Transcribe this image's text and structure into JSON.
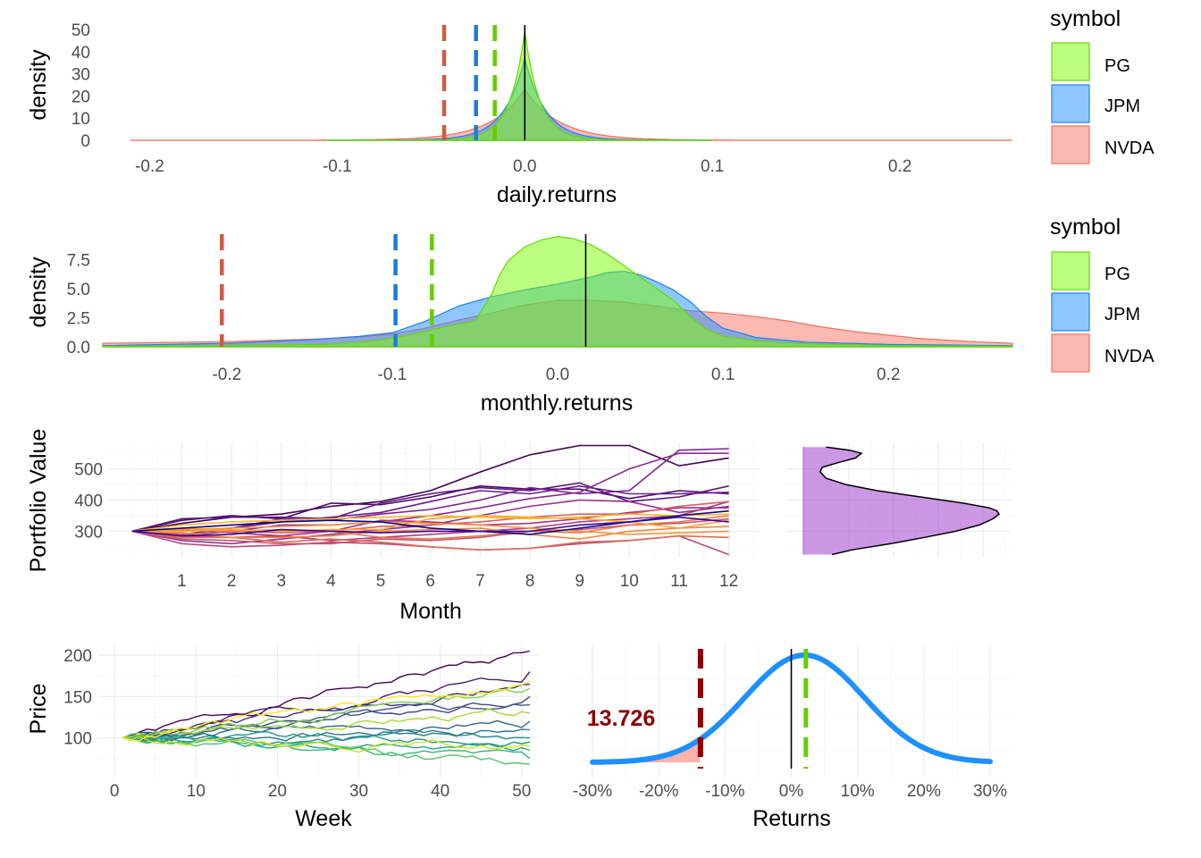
{
  "chart_data": [
    {
      "id": "daily",
      "type": "area",
      "title": "",
      "xlabel": "daily.returns",
      "ylabel": "density",
      "xlim": [
        -0.225,
        0.26
      ],
      "ylim": [
        0,
        52
      ],
      "x_ticks": [
        -0.2,
        -0.1,
        0.0,
        0.1,
        0.2
      ],
      "x_tick_labels": [
        "-0.2",
        "-0.1",
        "0.0",
        "0.1",
        "0.2"
      ],
      "y_ticks": [
        0,
        10,
        20,
        30,
        40,
        50
      ],
      "y_tick_labels": [
        "0",
        "10",
        "20",
        "30",
        "40",
        "50"
      ],
      "grid": false,
      "legend": {
        "title": "symbol",
        "position": "right",
        "labels": [
          "PG",
          "JPM",
          "NVDA"
        ]
      },
      "series": [
        {
          "name": "PG",
          "fill": "#7cfc00",
          "fill_opacity": 0.5,
          "stroke": "#66d900",
          "kind": "laplace",
          "mu": 0.0,
          "peak": 49,
          "scale": 0.008,
          "range": [
            -0.105,
            0.1
          ]
        },
        {
          "name": "JPM",
          "fill": "#1e90ff",
          "fill_opacity": 0.5,
          "stroke": "#1e82f0",
          "kind": "laplace",
          "mu": 0.0,
          "peak": 37,
          "scale": 0.011,
          "range": [
            -0.105,
            0.1
          ]
        },
        {
          "name": "NVDA",
          "fill": "#fa8072",
          "fill_opacity": 0.55,
          "stroke": "#f0705e",
          "kind": "laplace",
          "mu": 0.0,
          "peak": 23,
          "scale": 0.018,
          "range": [
            -0.21,
            0.26
          ]
        }
      ],
      "vlines": [
        {
          "x": -0.043,
          "color": "#cd5b45",
          "dashed": true
        },
        {
          "x": -0.026,
          "color": "#1c7cd6",
          "dashed": true
        },
        {
          "x": -0.016,
          "color": "#66cd00",
          "dashed": true
        },
        {
          "x": 0.0,
          "color": "#000000",
          "dashed": false
        }
      ]
    },
    {
      "id": "monthly",
      "type": "area",
      "title": "",
      "xlabel": "monthly.returns",
      "ylabel": "density",
      "xlim": [
        -0.275,
        0.275
      ],
      "ylim": [
        0,
        9.7
      ],
      "x_ticks": [
        -0.2,
        -0.1,
        0.0,
        0.1,
        0.2
      ],
      "x_tick_labels": [
        "-0.2",
        "-0.1",
        "0.0",
        "0.1",
        "0.2"
      ],
      "y_ticks": [
        0,
        2.5,
        5.0,
        7.5
      ],
      "y_tick_labels": [
        "0.0",
        "2.5",
        "5.0",
        "7.5"
      ],
      "grid": false,
      "legend": {
        "title": "symbol",
        "position": "right",
        "labels": [
          "PG",
          "JPM",
          "NVDA"
        ]
      },
      "series": [
        {
          "name": "PG",
          "fill": "#7cfc00",
          "fill_opacity": 0.5,
          "stroke": "#66d900",
          "x": [
            -0.275,
            -0.2,
            -0.14,
            -0.11,
            -0.09,
            -0.075,
            -0.065,
            -0.05,
            -0.04,
            -0.035,
            -0.03,
            -0.02,
            -0.01,
            0.0,
            0.01,
            0.02,
            0.03,
            0.04,
            0.05,
            0.06,
            0.07,
            0.08,
            0.09,
            0.1,
            0.12,
            0.15,
            0.2,
            0.275
          ],
          "y": [
            0.05,
            0.1,
            0.2,
            0.5,
            1.0,
            1.5,
            1.8,
            2.2,
            4.5,
            6.2,
            7.4,
            8.6,
            9.2,
            9.5,
            9.3,
            8.8,
            8.0,
            7.0,
            6.0,
            5.0,
            4.0,
            2.6,
            1.5,
            0.9,
            0.5,
            0.25,
            0.1,
            0.05
          ]
        },
        {
          "name": "JPM",
          "fill": "#1e90ff",
          "fill_opacity": 0.5,
          "stroke": "#1e82f0",
          "x": [
            -0.275,
            -0.2,
            -0.15,
            -0.12,
            -0.1,
            -0.08,
            -0.06,
            -0.04,
            -0.02,
            0.0,
            0.02,
            0.03,
            0.04,
            0.05,
            0.06,
            0.07,
            0.08,
            0.09,
            0.1,
            0.12,
            0.15,
            0.2,
            0.275
          ],
          "y": [
            0.1,
            0.3,
            0.6,
            0.9,
            1.2,
            2.2,
            3.5,
            4.3,
            4.9,
            5.4,
            6.0,
            6.4,
            6.5,
            6.2,
            5.6,
            4.9,
            3.9,
            2.6,
            1.6,
            0.8,
            0.4,
            0.2,
            0.1
          ]
        },
        {
          "name": "NVDA",
          "fill": "#fa8072",
          "fill_opacity": 0.55,
          "stroke": "#f0705e",
          "x": [
            -0.275,
            -0.25,
            -0.2,
            -0.15,
            -0.12,
            -0.1,
            -0.08,
            -0.06,
            -0.04,
            -0.02,
            0.0,
            0.02,
            0.04,
            0.06,
            0.08,
            0.1,
            0.12,
            0.14,
            0.16,
            0.18,
            0.2,
            0.22,
            0.25,
            0.275
          ],
          "y": [
            0.3,
            0.35,
            0.45,
            0.65,
            0.85,
            1.1,
            1.6,
            2.3,
            2.9,
            3.6,
            4.0,
            4.0,
            3.85,
            3.5,
            3.1,
            2.9,
            2.6,
            2.2,
            1.7,
            1.3,
            1.0,
            0.7,
            0.45,
            0.3
          ]
        }
      ],
      "vlines": [
        {
          "x": -0.203,
          "color": "#cd5b45",
          "dashed": true
        },
        {
          "x": -0.098,
          "color": "#1c7cd6",
          "dashed": true
        },
        {
          "x": -0.076,
          "color": "#66cd00",
          "dashed": true
        },
        {
          "x": 0.017,
          "color": "#000000",
          "dashed": false
        }
      ]
    },
    {
      "id": "portfolio",
      "type": "line",
      "title": "",
      "xlabel": "Month",
      "ylabel": "Portfolio Value",
      "xlim": [
        -0.5,
        12.6
      ],
      "ylim": [
        215,
        585
      ],
      "x_ticks": [
        1,
        2,
        3,
        4,
        5,
        6,
        7,
        8,
        9,
        10,
        11,
        12
      ],
      "x_tick_labels": [
        "1",
        "2",
        "3",
        "4",
        "5",
        "6",
        "7",
        "8",
        "9",
        "10",
        "11",
        "12"
      ],
      "y_ticks": [
        300,
        400,
        500
      ],
      "y_tick_labels": [
        "300",
        "400",
        "500"
      ],
      "grid": true,
      "x": [
        0,
        1,
        2,
        3,
        4,
        5,
        6,
        7,
        8,
        9,
        10,
        11,
        12
      ],
      "series": [
        {
          "color": "#440154",
          "values": [
            300,
            325,
            345,
            355,
            380,
            395,
            430,
            490,
            545,
            575,
            575,
            510,
            535
          ]
        },
        {
          "color": "#4b0c6b",
          "values": [
            300,
            335,
            350,
            340,
            390,
            385,
            410,
            445,
            435,
            435,
            405,
            430,
            420
          ]
        },
        {
          "color": "#5a167e",
          "values": [
            300,
            340,
            345,
            345,
            340,
            390,
            420,
            440,
            430,
            455,
            395,
            410,
            445
          ]
        },
        {
          "color": "#6a1e8a",
          "values": [
            300,
            300,
            310,
            330,
            345,
            360,
            395,
            430,
            420,
            445,
            420,
            420,
            425
          ]
        },
        {
          "color": "#7a2590",
          "values": [
            300,
            290,
            310,
            340,
            335,
            355,
            370,
            400,
            440,
            420,
            430,
            560,
            565
          ]
        },
        {
          "color": "#892d92",
          "values": [
            300,
            285,
            300,
            320,
            320,
            330,
            350,
            375,
            405,
            425,
            500,
            550,
            550
          ]
        },
        {
          "color": "#962f8e",
          "values": [
            300,
            270,
            260,
            275,
            290,
            305,
            320,
            350,
            380,
            400,
            395,
            360,
            380
          ]
        },
        {
          "color": "#a4338a",
          "values": [
            300,
            285,
            280,
            285,
            300,
            335,
            330,
            320,
            325,
            340,
            360,
            375,
            375
          ]
        },
        {
          "color": "#b13b83",
          "values": [
            300,
            305,
            295,
            285,
            270,
            280,
            290,
            300,
            310,
            330,
            340,
            350,
            395
          ]
        },
        {
          "color": "#bd4a7a",
          "values": [
            300,
            260,
            250,
            255,
            265,
            260,
            250,
            240,
            245,
            260,
            270,
            285,
            225
          ]
        },
        {
          "color": "#c85571",
          "values": [
            300,
            275,
            270,
            260,
            260,
            275,
            270,
            280,
            300,
            305,
            320,
            325,
            340
          ]
        },
        {
          "color": "#d36167",
          "values": [
            300,
            290,
            300,
            295,
            300,
            315,
            320,
            330,
            345,
            355,
            355,
            380,
            395
          ]
        },
        {
          "color": "#dc6d5d",
          "values": [
            300,
            280,
            280,
            265,
            275,
            265,
            250,
            240,
            245,
            265,
            270,
            285,
            280
          ]
        },
        {
          "color": "#e67a52",
          "values": [
            300,
            310,
            300,
            305,
            300,
            280,
            275,
            285,
            300,
            295,
            320,
            330,
            350
          ]
        },
        {
          "color": "#f08845",
          "values": [
            300,
            295,
            280,
            280,
            285,
            300,
            305,
            310,
            290,
            275,
            300,
            310,
            315
          ]
        },
        {
          "color": "#f79739",
          "values": [
            300,
            305,
            310,
            315,
            320,
            330,
            325,
            320,
            310,
            300,
            290,
            295,
            300
          ]
        },
        {
          "color": "#fca72c",
          "values": [
            300,
            300,
            305,
            300,
            305,
            305,
            340,
            350,
            345,
            340,
            330,
            310,
            335
          ]
        },
        {
          "color": "#fdb724",
          "values": [
            300,
            320,
            330,
            335,
            340,
            345,
            350,
            345,
            340,
            345,
            355,
            350,
            355
          ]
        },
        {
          "color": "#0d0887",
          "values": [
            300,
            310,
            320,
            330,
            335,
            330,
            310,
            300,
            290,
            310,
            330,
            350,
            365
          ]
        },
        {
          "color": "#3b049a",
          "values": [
            300,
            285,
            290,
            305,
            300,
            295,
            300,
            300,
            300,
            320,
            330,
            345,
            330
          ]
        }
      ]
    },
    {
      "id": "portfolio-density",
      "type": "area",
      "title": "",
      "orientation": "horizontal",
      "ylim": [
        215,
        585
      ],
      "grid": true,
      "fill": "#9932cc",
      "fill_opacity": 0.5,
      "y": [
        225,
        240,
        260,
        280,
        300,
        320,
        340,
        355,
        365,
        375,
        390,
        410,
        430,
        450,
        470,
        490,
        505,
        520,
        535,
        550,
        560,
        570
      ],
      "density": [
        0.15,
        0.25,
        0.45,
        0.62,
        0.78,
        0.9,
        0.97,
        1.0,
        0.99,
        0.95,
        0.82,
        0.6,
        0.38,
        0.22,
        0.12,
        0.09,
        0.1,
        0.18,
        0.27,
        0.3,
        0.24,
        0.12
      ]
    },
    {
      "id": "price",
      "type": "line",
      "title": "",
      "xlabel": "Week",
      "ylabel": "Price",
      "xlim": [
        -2,
        52
      ],
      "ylim": [
        52,
        212
      ],
      "x_ticks": [
        0,
        10,
        20,
        30,
        40,
        50
      ],
      "x_tick_labels": [
        "0",
        "10",
        "20",
        "30",
        "40",
        "50"
      ],
      "y_ticks": [
        100,
        150,
        200
      ],
      "y_tick_labels": [
        "100",
        "150",
        "200"
      ],
      "grid": true,
      "series_endpoints": [
        {
          "color": "#440154",
          "end": 205,
          "seed": 1
        },
        {
          "color": "#481a6c",
          "end": 180,
          "seed": 2
        },
        {
          "color": "#472f7d",
          "end": 165,
          "seed": 3
        },
        {
          "color": "#414487",
          "end": 150,
          "seed": 4
        },
        {
          "color": "#39568c",
          "end": 140,
          "seed": 5
        },
        {
          "color": "#31688e",
          "end": 120,
          "seed": 6
        },
        {
          "color": "#2a788e",
          "end": 110,
          "seed": 7
        },
        {
          "color": "#23888e",
          "end": 100,
          "seed": 8
        },
        {
          "color": "#1f988b",
          "end": 95,
          "seed": 9
        },
        {
          "color": "#22a884",
          "end": 85,
          "seed": 10
        },
        {
          "color": "#35b779",
          "end": 75,
          "seed": 11
        },
        {
          "color": "#54c568",
          "end": 68,
          "seed": 12
        },
        {
          "color": "#7ad151",
          "end": 160,
          "seed": 13
        },
        {
          "color": "#a5db36",
          "end": 130,
          "seed": 14
        },
        {
          "color": "#d2e21b",
          "end": 90,
          "seed": 15
        },
        {
          "color": "#fde725",
          "end": 168,
          "seed": 16
        }
      ]
    },
    {
      "id": "returns-dist",
      "type": "line",
      "title": "",
      "xlabel": "Returns",
      "xlim": [
        -0.3,
        0.3
      ],
      "x_ticks": [
        -0.3,
        -0.2,
        -0.1,
        0.0,
        0.1,
        0.2,
        0.3
      ],
      "x_tick_labels": [
        "-30%",
        "-20%",
        "-10%",
        "0%",
        "10%",
        "20%",
        "30%"
      ],
      "grid": true,
      "curve": {
        "color": "#1e90ff",
        "mean": 0.02,
        "sd": 0.09
      },
      "tail_fill": "#fa8072",
      "var_line": {
        "x": -0.137,
        "color": "#8b0000"
      },
      "mean_line": {
        "x": 0.022,
        "color": "#66cd00"
      },
      "zero_line": {
        "x": 0.0,
        "color": "#000000"
      },
      "annotation": "13.726"
    }
  ]
}
